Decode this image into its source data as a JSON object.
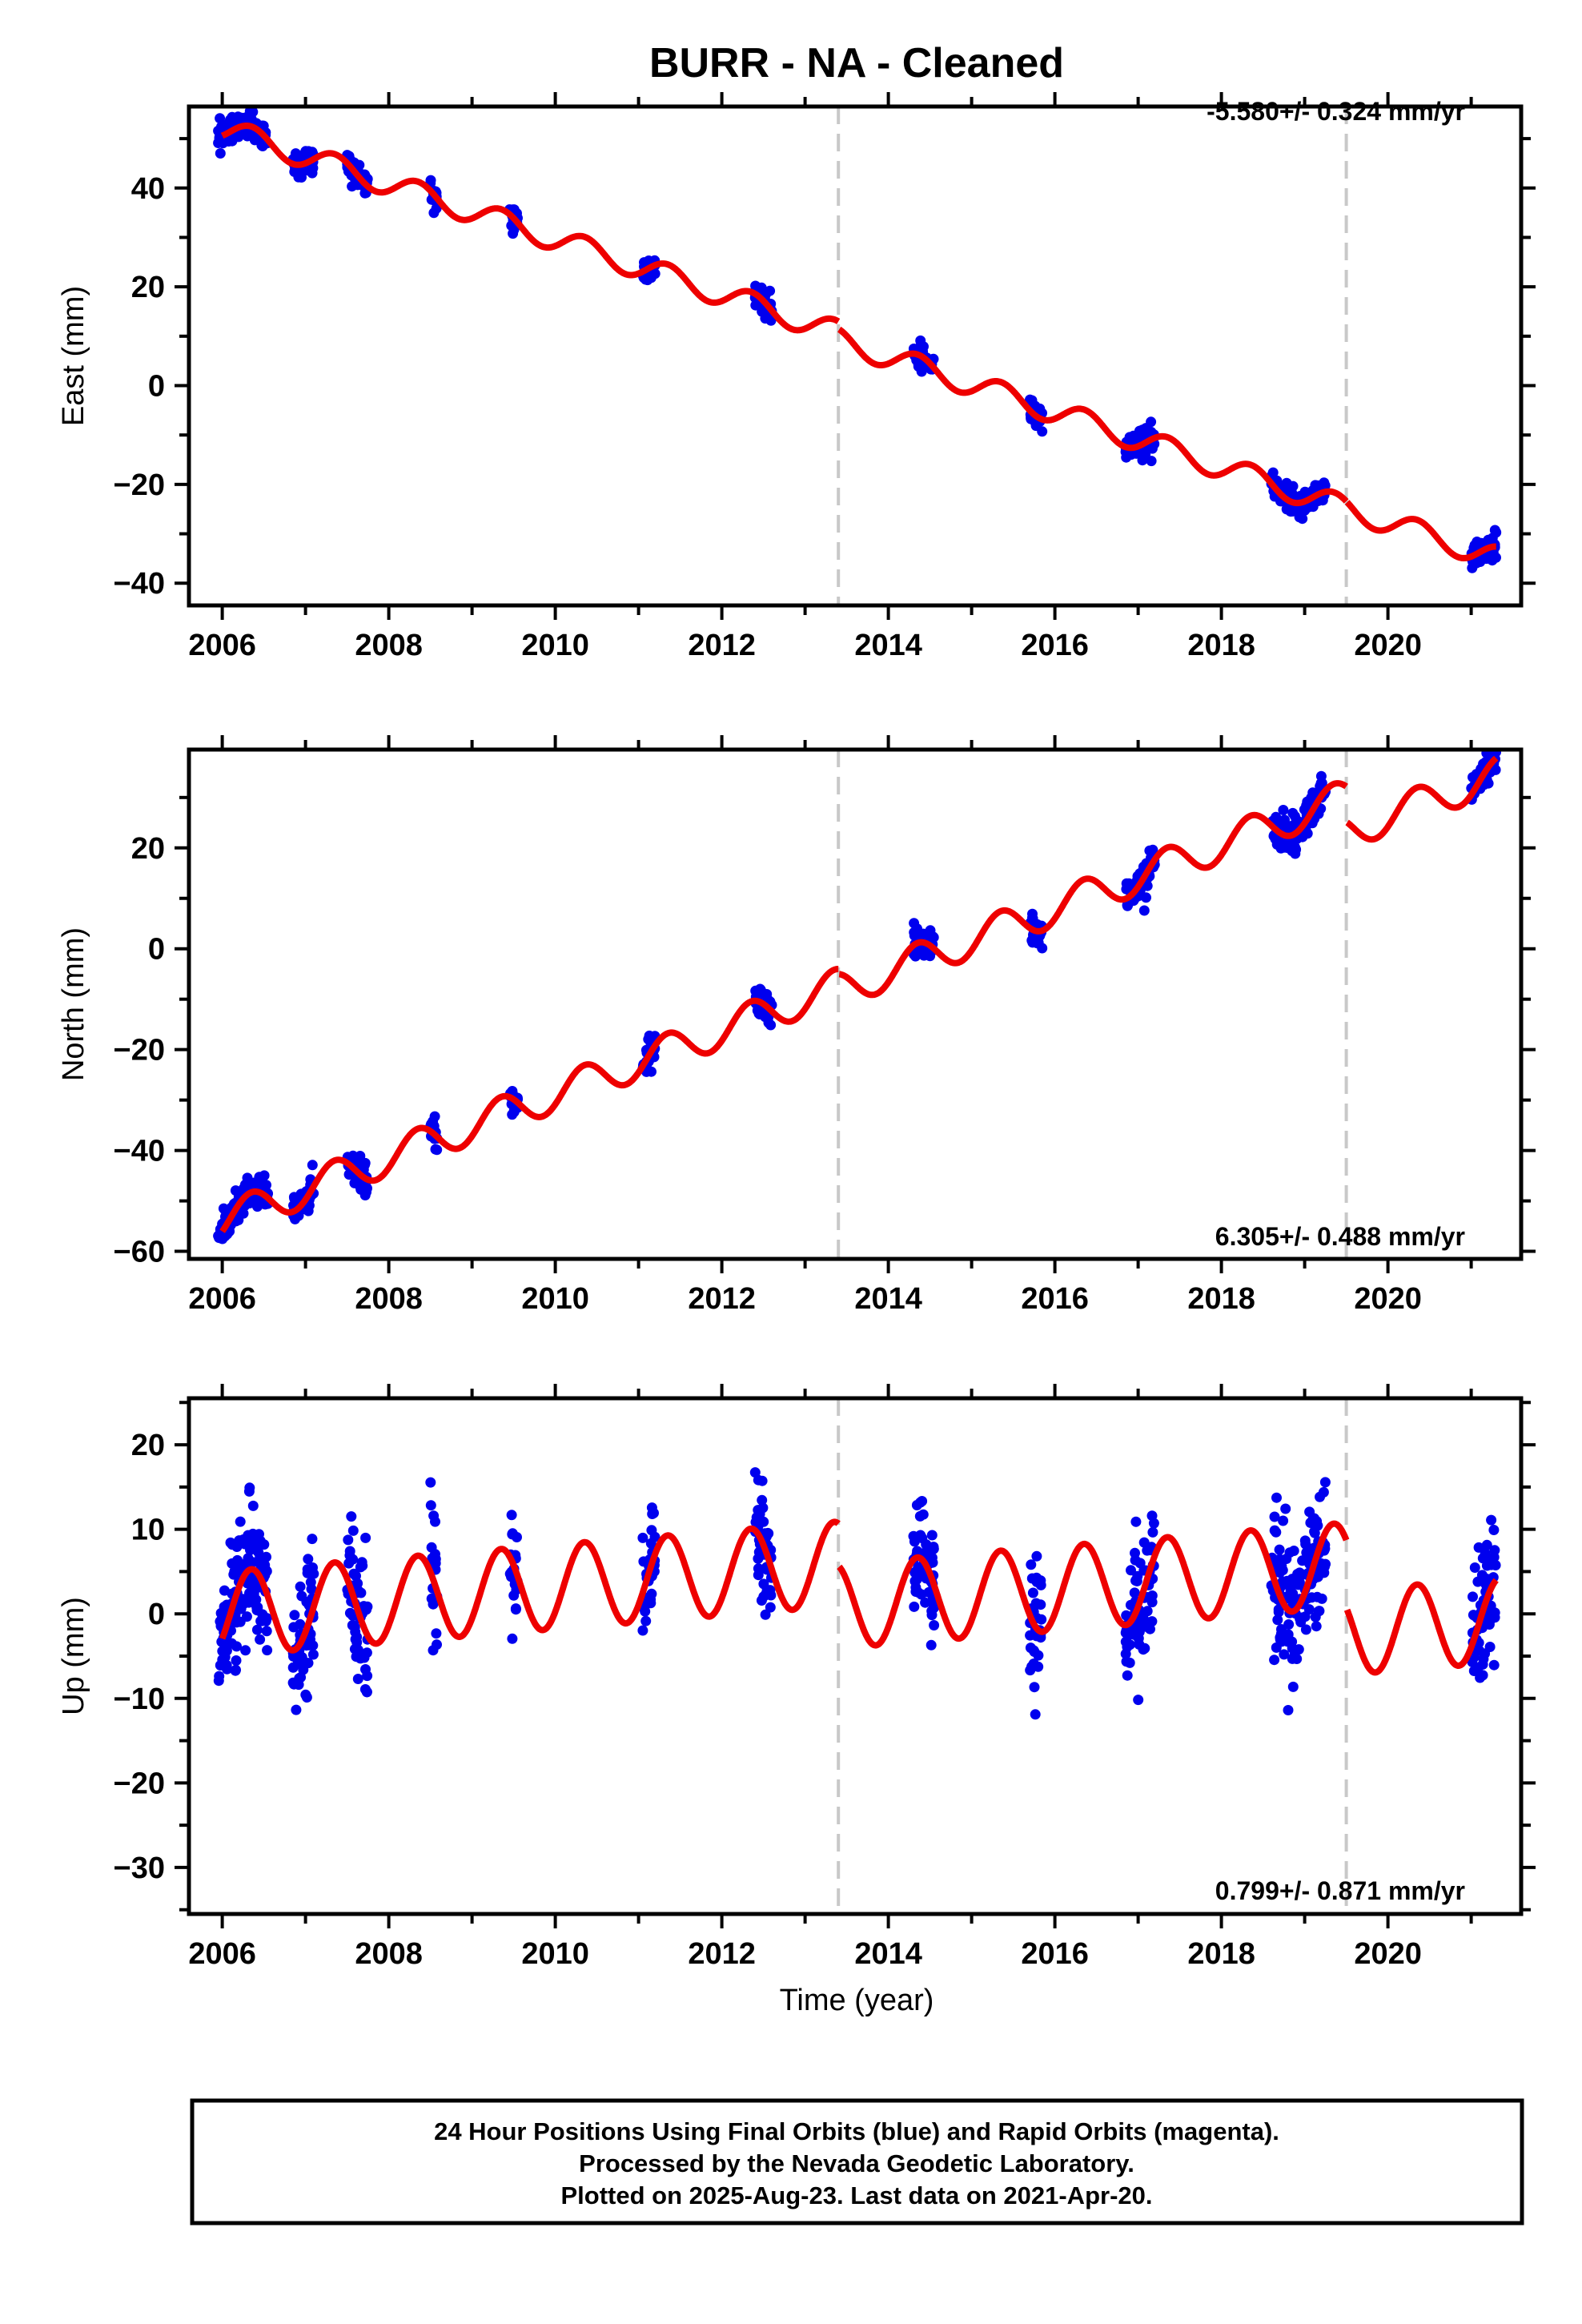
{
  "title": "BURR  - NA - Cleaned",
  "xlabel": "Time (year)",
  "footer": [
    "24 Hour Positions Using Final Orbits (blue) and Rapid Orbits (magenta).",
    "Processed by the Nevada Geodetic Laboratory.",
    "Plotted on 2025-Aug-23. Last data on 2021-Apr-20."
  ],
  "colors": {
    "data": "#0000ee",
    "model": "#ee0000",
    "step": "#c8c8c8",
    "frame": "#000000"
  },
  "chart_data": [
    {
      "type": "scatter",
      "ylabel": "East (mm)",
      "rate_label": "-5.580+/- 0.324 mm/yr",
      "xlim": [
        2005.6,
        2021.6
      ],
      "ylim": [
        -44.5,
        56.5
      ],
      "xticks": [
        2006,
        2008,
        2010,
        2012,
        2014,
        2016,
        2018,
        2020
      ],
      "yticks": [
        -40,
        -20,
        0,
        20,
        40
      ],
      "steps": [
        2013.4,
        2019.5
      ],
      "rate": -5.58,
      "offset_at_2006": 52,
      "seasonal_amp": 2.4,
      "step_offsets": [
        -1.5,
        0
      ],
      "scatter_sd": 1.3,
      "grid": false,
      "legend": "none"
    },
    {
      "type": "scatter",
      "ylabel": "North (mm)",
      "rate_label": "6.305+/- 0.488 mm/yr",
      "xlim": [
        2005.6,
        2021.6
      ],
      "ylim": [
        -61.5,
        39.5
      ],
      "xticks": [
        2006,
        2008,
        2010,
        2012,
        2014,
        2016,
        2018,
        2020
      ],
      "yticks": [
        -60,
        -40,
        -20,
        0,
        20
      ],
      "steps": [
        2013.4,
        2019.5
      ],
      "rate": 6.305,
      "offset_at_2006": -54,
      "seasonal_amp": 3.5,
      "step_offsets": [
        -1,
        -7
      ],
      "scatter_sd": 1.5,
      "grid": false,
      "legend": "none"
    },
    {
      "type": "scatter",
      "ylabel": "Up (mm)",
      "rate_label": "0.799+/- 0.871 mm/yr",
      "xlim": [
        2005.6,
        2021.6
      ],
      "ylim": [
        -35.5,
        25.5
      ],
      "xticks": [
        2006,
        2008,
        2010,
        2012,
        2014,
        2016,
        2018,
        2020
      ],
      "yticks": [
        -30,
        -20,
        -10,
        0,
        10,
        20
      ],
      "steps": [
        2013.4,
        2019.5
      ],
      "rate": 0.799,
      "offset_at_2006": 0,
      "seasonal_amp": 5.0,
      "step_offsets": [
        -5,
        -8
      ],
      "scatter_sd": 4.0,
      "grid": false,
      "legend": "none"
    }
  ],
  "observation_epochs": [
    [
      2005.95,
      2006.55
    ],
    [
      2006.85,
      2007.1
    ],
    [
      2007.5,
      2007.75
    ],
    [
      2008.5,
      2008.58
    ],
    [
      2009.45,
      2009.55
    ],
    [
      2011.05,
      2011.2
    ],
    [
      2012.4,
      2012.6
    ],
    [
      2014.3,
      2014.55
    ],
    [
      2015.7,
      2015.85
    ],
    [
      2016.85,
      2017.2
    ],
    [
      2018.6,
      2019.25
    ],
    [
      2021.0,
      2021.3
    ]
  ]
}
